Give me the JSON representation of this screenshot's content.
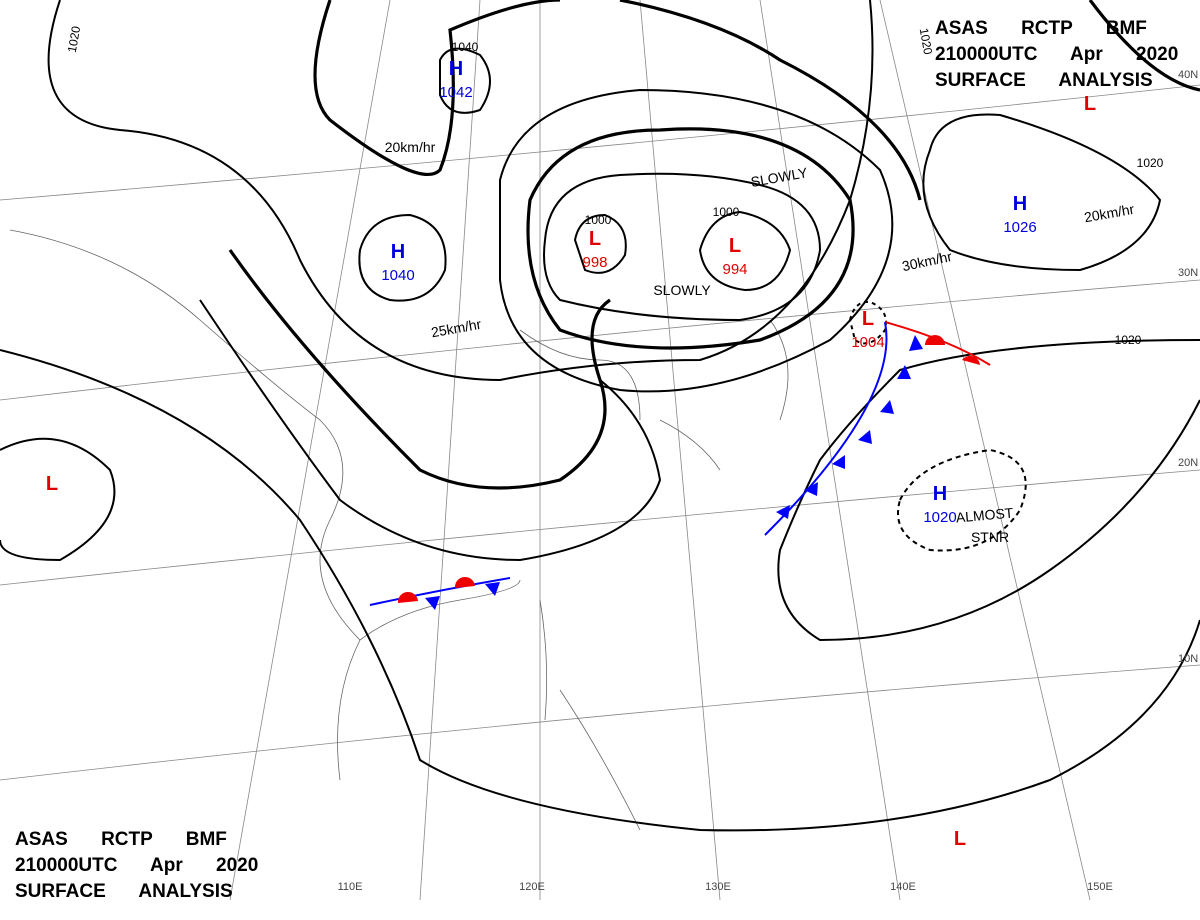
{
  "header": {
    "lines": [
      "ASAS RCTP BMF",
      "210000UTC Apr 2020",
      "SURFACE ANALYSIS"
    ]
  },
  "footer": {
    "lines": [
      "ASAS RCTP BMF",
      "210000UTC Apr 2020",
      "SURFACE ANALYSIS"
    ]
  },
  "pressure_centers": [
    {
      "type": "H",
      "value": "1042"
    },
    {
      "type": "H",
      "value": "1040"
    },
    {
      "type": "L",
      "value": "998"
    },
    {
      "type": "L",
      "value": "994"
    },
    {
      "type": "L",
      "value": "1004"
    },
    {
      "type": "H",
      "value": "1026"
    },
    {
      "type": "H",
      "value": "1020"
    },
    {
      "type": "L"
    },
    {
      "type": "L"
    },
    {
      "type": "L"
    }
  ],
  "isobar_labels": [
    "1020",
    "1040",
    "1000",
    "1000",
    "1020",
    "1020",
    "1020"
  ],
  "motion_labels": [
    "20km/hr",
    "25km/hr",
    "SLOWLY",
    "SLOWLY",
    "30km/hr",
    "20km/hr",
    "ALMOST",
    "STNR"
  ],
  "latitude_labels": [
    "40N",
    "30N",
    "20N",
    "10N"
  ],
  "longitude_labels": [
    "110E",
    "120E",
    "130E",
    "140E",
    "150E"
  ]
}
